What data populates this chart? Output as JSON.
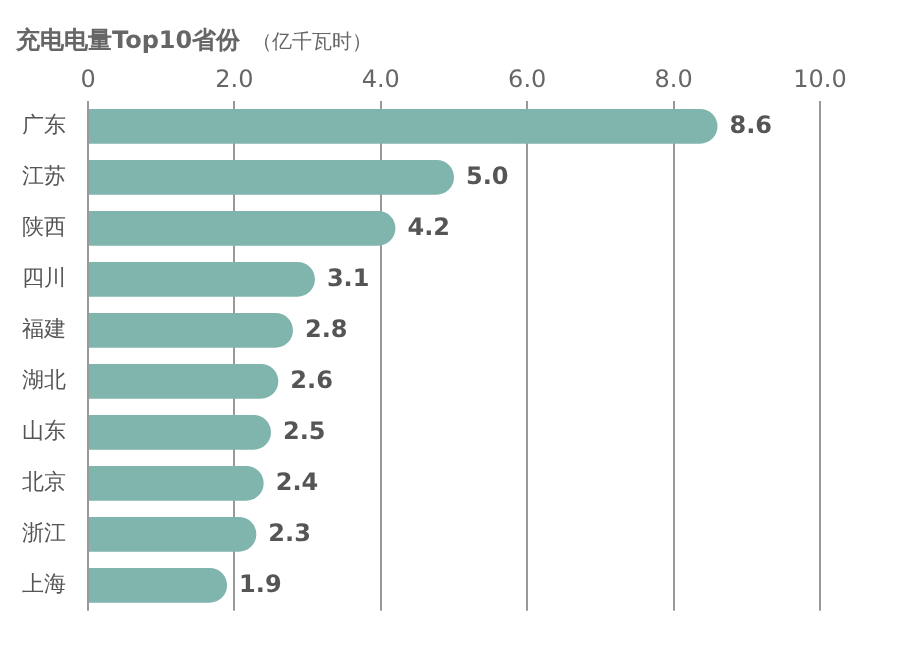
{
  "chart_data": {
    "type": "bar",
    "orientation": "horizontal",
    "title": "充电电量Top10省份",
    "subtitle": "（亿千瓦时）",
    "categories": [
      "广东",
      "江苏",
      "陕西",
      "四川",
      "福建",
      "湖北",
      "山东",
      "北京",
      "浙江",
      "上海"
    ],
    "values": [
      8.6,
      5.0,
      4.2,
      3.1,
      2.8,
      2.6,
      2.5,
      2.4,
      2.3,
      1.9
    ],
    "value_labels": [
      "8.6",
      "5.0",
      "4.2",
      "3.1",
      "2.8",
      "2.6",
      "2.5",
      "2.4",
      "2.3",
      "1.9"
    ],
    "color": "#80b5ae",
    "xlim": [
      0,
      10
    ],
    "xticks": [
      0,
      {
        "value": 2,
        "label": "2.0"
      },
      {
        "value": 4,
        "label": "4.0"
      },
      {
        "value": 6,
        "label": "6.0"
      },
      {
        "value": 8,
        "label": "8.0"
      },
      {
        "value": 10,
        "label": "10.0"
      }
    ],
    "grid": "x",
    "legend": false
  }
}
